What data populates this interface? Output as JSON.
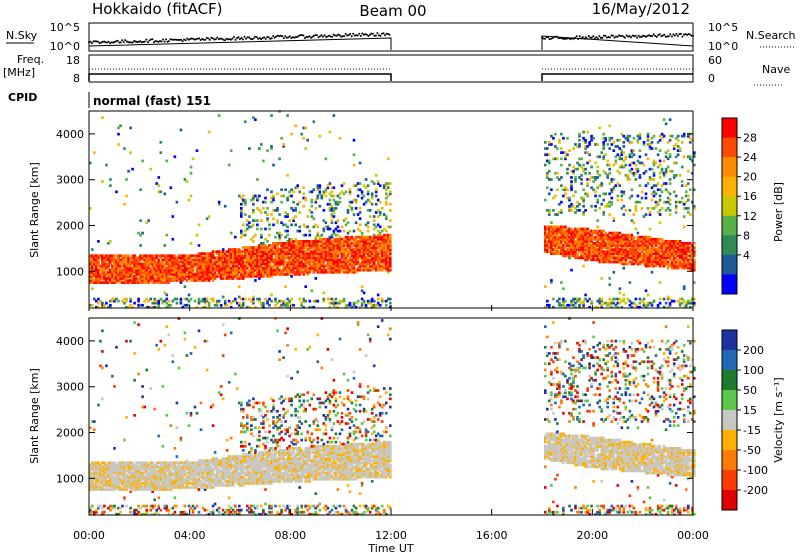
{
  "header": {
    "title": "Hokkaido (fitACF)",
    "beam": "Beam 00",
    "date": "16/May/2012"
  },
  "top_panels": {
    "nsky_label": "N.Sky",
    "nsearch_label": "N.Search",
    "nsky_ticks": [
      "10^5",
      "10^0"
    ],
    "nsearch_ticks": [
      "10^5",
      "10^0"
    ],
    "freq_label": "Freq.",
    "freq_unit": "[MHz]",
    "freq_ticks": [
      "18",
      "8"
    ],
    "nave_label": "Nave",
    "nave_ticks": [
      "60",
      "0"
    ],
    "cpid_label": "CPID",
    "cpid_value": "normal (fast) 151"
  },
  "power_colorbar": {
    "label": "Power [dB]",
    "ticks": [
      "28",
      "24",
      "20",
      "16",
      "12",
      "8",
      "4"
    ],
    "colors": [
      "#ff0000",
      "#ff4a00",
      "#ff8c00",
      "#ffb000",
      "#c8c800",
      "#58b048",
      "#2e8b57",
      "#1e5a96",
      "#0000ff"
    ]
  },
  "velocity_colorbar": {
    "label": "Velocity [m s⁻¹]",
    "ticks": [
      "200",
      "100",
      "50",
      "15",
      "-15",
      "-50",
      "-100",
      "-200"
    ],
    "colors": [
      "#1e32a0",
      "#1e6ab4",
      "#1e7a2e",
      "#5ac84a",
      "#c8c8c0",
      "#ffb000",
      "#ff7a00",
      "#ff3c00",
      "#e00000"
    ]
  },
  "x_axis": {
    "label": "Time UT",
    "ticks": [
      "00:00",
      "04:00",
      "08:00",
      "12:00",
      "16:00",
      "20:00",
      "00:00"
    ]
  },
  "chart_data": [
    {
      "type": "heatmap",
      "name": "power",
      "title": "Hokkaido (fitACF)  Beam 00  16/May/2012",
      "xlabel": "Time UT",
      "ylabel": "Slant Range [km]",
      "y_ticks": [
        "1000",
        "2000",
        "3000",
        "4000"
      ],
      "xlim": [
        0,
        24
      ],
      "ylim": [
        200,
        4500
      ],
      "zlabel": "Power [dB]",
      "zlim": [
        0,
        32
      ],
      "data_gap_hours": [
        12.0,
        18.0
      ],
      "main_echo_band_km": [
        {
          "t": 0,
          "lo": 700,
          "hi": 1350
        },
        {
          "t": 4,
          "lo": 750,
          "hi": 1350
        },
        {
          "t": 8,
          "lo": 900,
          "hi": 1650
        },
        {
          "t": 12,
          "lo": 1000,
          "hi": 1800
        },
        {
          "t": 18,
          "lo": 1400,
          "hi": 2000
        },
        {
          "t": 20,
          "lo": 1200,
          "hi": 1900
        },
        {
          "t": 24,
          "lo": 1000,
          "hi": 1600
        }
      ]
    },
    {
      "type": "heatmap",
      "name": "velocity",
      "xlabel": "Time UT",
      "ylabel": "Slant Range [km]",
      "y_ticks": [
        "1000",
        "2000",
        "3000",
        "4000"
      ],
      "xlim": [
        0,
        24
      ],
      "ylim": [
        200,
        4500
      ],
      "zlabel": "Velocity [m s-1]",
      "zlim": [
        -200,
        200
      ],
      "data_gap_hours": [
        12.0,
        18.0
      ]
    }
  ]
}
